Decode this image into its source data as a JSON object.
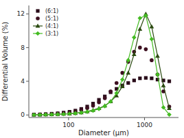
{
  "chart_data": {
    "type": "line",
    "x_label": "Diameter (μm)",
    "y_label": "Differential Volume (%)",
    "log": "x",
    "xlim": [
      30,
      2800
    ],
    "ylim": [
      -0.3,
      13
    ],
    "xticks": [
      100,
      1000
    ],
    "yticks": [
      0,
      4,
      8,
      12
    ],
    "grid": false,
    "legend": "upper left",
    "x": [
      35,
      42,
      50,
      60,
      72,
      86,
      103,
      123,
      147,
      176,
      210,
      251,
      300,
      358,
      428,
      511,
      610,
      729,
      870,
      1039,
      1241,
      1483,
      1771,
      2115
    ],
    "series": [
      {
        "name": "(6:1)",
        "color": "#2a0d1a",
        "marker": "square",
        "line_style": "none",
        "values": [
          0.05,
          0.07,
          0.1,
          0.15,
          0.2,
          0.28,
          0.38,
          0.52,
          0.72,
          1.0,
          1.35,
          1.8,
          2.2,
          2.7,
          3.1,
          3.5,
          3.8,
          4.1,
          4.35,
          4.4,
          4.35,
          4.2,
          4.1,
          4.0
        ]
      },
      {
        "name": "(5:1)",
        "color": "#3d1020",
        "marker": "circle",
        "line_style": "none",
        "values": [
          0.05,
          0.07,
          0.09,
          0.12,
          0.16,
          0.22,
          0.3,
          0.42,
          0.6,
          0.82,
          1.1,
          1.5,
          2.0,
          2.8,
          3.8,
          5.0,
          6.3,
          7.5,
          8.0,
          7.8,
          6.5,
          4.8,
          2.8,
          1.0
        ]
      },
      {
        "name": "(4:1)",
        "color": "#2a4a10",
        "marker": "triangle",
        "line_style": "solid",
        "values": [
          0.02,
          0.03,
          0.05,
          0.07,
          0.09,
          0.12,
          0.16,
          0.22,
          0.3,
          0.42,
          0.58,
          0.8,
          1.1,
          1.6,
          2.3,
          3.4,
          5.0,
          7.2,
          10.2,
          12.0,
          10.5,
          7.0,
          3.5,
          0.8
        ]
      },
      {
        "name": "(3:1)",
        "color": "#44bb22",
        "marker": "diamond",
        "line_style": "solid",
        "values": [
          0.02,
          0.03,
          0.04,
          0.06,
          0.08,
          0.11,
          0.15,
          0.2,
          0.28,
          0.38,
          0.52,
          0.72,
          1.05,
          1.6,
          2.6,
          4.2,
          6.5,
          9.2,
          11.5,
          11.8,
          9.0,
          4.8,
          0.9,
          0.05
        ]
      }
    ]
  }
}
